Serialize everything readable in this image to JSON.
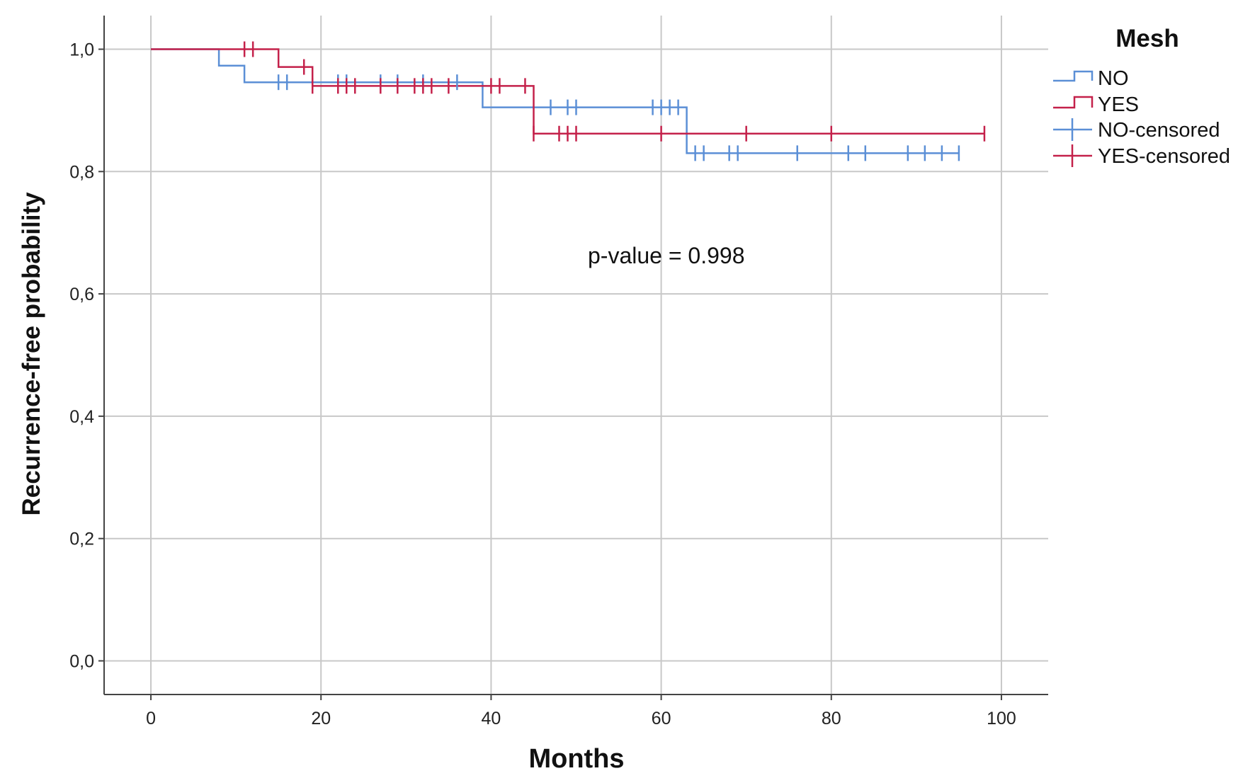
{
  "chart_data": {
    "type": "line",
    "subtype": "kaplan-meier step curves",
    "title": "",
    "xlabel": "Months",
    "ylabel": "Recurrence-free probability",
    "xlim": [
      -5.5,
      105.5
    ],
    "ylim": [
      -0.055,
      1.055
    ],
    "x_ticks": [
      0,
      20,
      40,
      60,
      80,
      100
    ],
    "x_tick_labels": [
      "0",
      "20",
      "40",
      "60",
      "80",
      "100"
    ],
    "y_ticks": [
      0,
      0.2,
      0.4,
      0.6,
      0.8,
      1.0
    ],
    "y_tick_labels": [
      "0,0",
      "0,2",
      "0,4",
      "0,6",
      "0,8",
      "1,0"
    ],
    "grid": true,
    "legend_title": "Mesh",
    "legend_position": "top-right, outside plot",
    "annotation": "p-value = 0.998",
    "series": [
      {
        "name": "NO",
        "censored_label": "NO-censored",
        "color": "#5b8fd6",
        "steps": [
          [
            0,
            1.0
          ],
          [
            8,
            0.973
          ],
          [
            11,
            0.946
          ],
          [
            39,
            0.905
          ],
          [
            63,
            0.83
          ],
          [
            95,
            0.83
          ]
        ],
        "censored": [
          [
            15,
            0.946
          ],
          [
            16,
            0.946
          ],
          [
            22,
            0.946
          ],
          [
            23,
            0.946
          ],
          [
            27,
            0.946
          ],
          [
            29,
            0.946
          ],
          [
            32,
            0.946
          ],
          [
            36,
            0.946
          ],
          [
            47,
            0.905
          ],
          [
            49,
            0.905
          ],
          [
            50,
            0.905
          ],
          [
            59,
            0.905
          ],
          [
            60,
            0.905
          ],
          [
            61,
            0.905
          ],
          [
            62,
            0.905
          ],
          [
            64,
            0.83
          ],
          [
            65,
            0.83
          ],
          [
            68,
            0.83
          ],
          [
            69,
            0.83
          ],
          [
            76,
            0.83
          ],
          [
            82,
            0.83
          ],
          [
            84,
            0.83
          ],
          [
            89,
            0.83
          ],
          [
            91,
            0.83
          ],
          [
            93,
            0.83
          ],
          [
            95,
            0.83
          ]
        ]
      },
      {
        "name": "YES",
        "censored_label": "YES-censored",
        "color": "#c4214a",
        "steps": [
          [
            0,
            1.0
          ],
          [
            15,
            0.971
          ],
          [
            19,
            0.94
          ],
          [
            45,
            0.862
          ],
          [
            98,
            0.862
          ]
        ],
        "censored": [
          [
            11,
            1.0
          ],
          [
            12,
            1.0
          ],
          [
            18,
            0.971
          ],
          [
            19,
            0.94
          ],
          [
            22,
            0.94
          ],
          [
            23,
            0.94
          ],
          [
            24,
            0.94
          ],
          [
            27,
            0.94
          ],
          [
            29,
            0.94
          ],
          [
            31,
            0.94
          ],
          [
            32,
            0.94
          ],
          [
            33,
            0.94
          ],
          [
            35,
            0.94
          ],
          [
            40,
            0.94
          ],
          [
            41,
            0.94
          ],
          [
            44,
            0.94
          ],
          [
            45,
            0.862
          ],
          [
            48,
            0.862
          ],
          [
            49,
            0.862
          ],
          [
            50,
            0.862
          ],
          [
            60,
            0.862
          ],
          [
            70,
            0.862
          ],
          [
            80,
            0.862
          ],
          [
            98,
            0.862
          ]
        ]
      }
    ]
  }
}
